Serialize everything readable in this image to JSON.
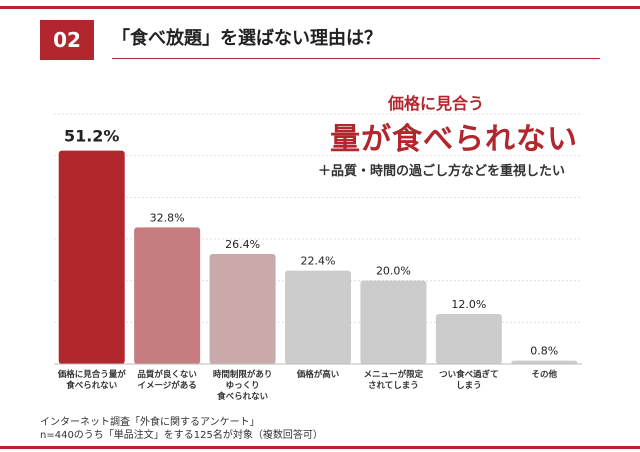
{
  "header": {
    "number": "02",
    "title": "「食べ放題」を選ばない理由は？"
  },
  "headline": {
    "line1": "価格に見合う",
    "line2": "量が食べられない",
    "line3": "＋品質・時間の過ごし方などを重視したい"
  },
  "footnote": {
    "line1": "インターネット調査「外食に関するアンケート」",
    "line2": "n=440のうち「単品注文」をする125名が対象（複数回答可）"
  },
  "colors": {
    "accent": "#b2272d",
    "bar_top": "#b2272d",
    "bar_2": "#c57d7f",
    "bar_3": "#c9a9aa",
    "bar_other": "#cccccc",
    "grid": "#e0e0e0"
  },
  "chart_data": {
    "type": "bar",
    "categories": [
      [
        "価格に見合う量が",
        "食べられない"
      ],
      [
        "品質が良くない",
        "イメージがある"
      ],
      [
        "時間制限があり",
        "ゆっくり",
        "食べられない"
      ],
      [
        "価格が高い"
      ],
      [
        "メニューが限定",
        "されてしまう"
      ],
      [
        "つい食べ過ぎて",
        "しまう"
      ],
      [
        "その他"
      ]
    ],
    "values": [
      51.2,
      32.8,
      26.4,
      22.4,
      20.0,
      12.0,
      0.8
    ],
    "value_labels": [
      "51.2%",
      "32.8%",
      "26.4%",
      "22.4%",
      "20.0%",
      "12.0%",
      "0.8%"
    ],
    "ylim": [
      0,
      60
    ],
    "grid": true,
    "legend": "none"
  }
}
